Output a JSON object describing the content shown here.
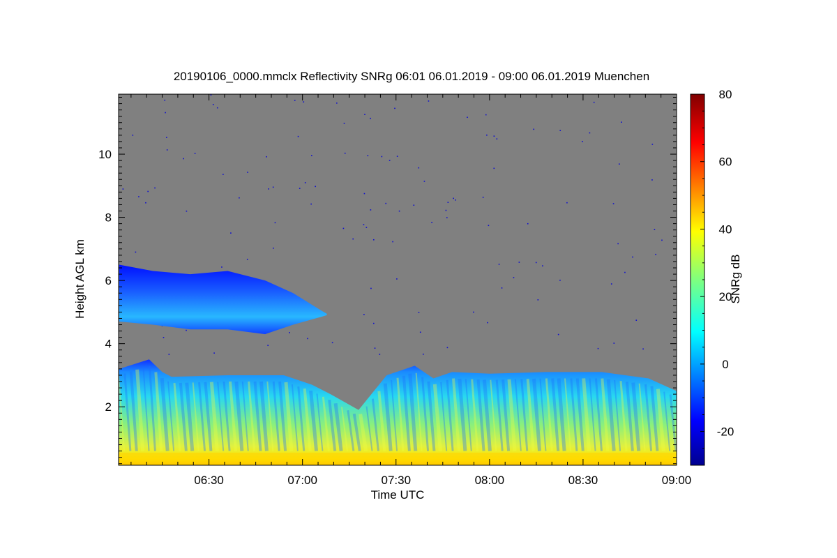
{
  "chart_data": {
    "type": "heatmap",
    "title": "20190106_0000.mmclx Reflectivity SNRg   06:01 06.01.2019 - 09:00 06.01.2019 Muenchen",
    "xlabel": "Time UTC",
    "ylabel": "Height AGL km",
    "x_tick_labels": [
      "06:30",
      "07:00",
      "07:30",
      "08:00",
      "08:30",
      "09:00"
    ],
    "y_tick_labels": [
      "2",
      "4",
      "6",
      "8",
      "10"
    ],
    "xlim": [
      "06:01",
      "09:00"
    ],
    "ylim_km": [
      0.15,
      11.9
    ],
    "background_color": "#808080",
    "colorbar": {
      "label": "SNRg dB",
      "range": [
        -30,
        80
      ],
      "tick_labels": [
        "-20",
        "0",
        "20",
        "40",
        "60",
        "80"
      ],
      "colormap": "jet"
    },
    "cloud_layers": [
      {
        "name": "",
        "time_start": "06:01",
        "time_end": "07:13",
        "base_profile_km": [
          [
            6.02,
            4.7
          ],
          [
            6.2,
            4.6
          ],
          [
            6.4,
            4.45
          ],
          [
            6.6,
            4.45
          ],
          [
            6.8,
            4.3
          ],
          [
            6.95,
            4.6
          ],
          [
            7.1,
            4.85
          ],
          [
            7.13,
            4.9
          ]
        ],
        "top_profile_km": [
          [
            6.02,
            6.5
          ],
          [
            6.2,
            6.3
          ],
          [
            6.4,
            6.2
          ],
          [
            6.6,
            6.3
          ],
          [
            6.8,
            6.0
          ],
          [
            6.95,
            5.6
          ],
          [
            7.1,
            5.05
          ],
          [
            7.13,
            4.95
          ]
        ],
        "snr_typical_db": [
          -20,
          10
        ]
      },
      {
        "name": "",
        "time_start": "06:01",
        "time_end": "09:00",
        "base_km": 0.15,
        "top_profile_km": [
          [
            6.02,
            3.2
          ],
          [
            6.18,
            3.5
          ],
          [
            6.25,
            3.1
          ],
          [
            6.3,
            2.95
          ],
          [
            6.6,
            3.0
          ],
          [
            6.9,
            3.0
          ],
          [
            7.05,
            2.7
          ],
          [
            7.15,
            2.4
          ],
          [
            7.3,
            1.9
          ],
          [
            7.45,
            3.0
          ],
          [
            7.6,
            3.3
          ],
          [
            7.7,
            2.9
          ],
          [
            7.8,
            3.1
          ],
          [
            8.0,
            3.05
          ],
          [
            8.3,
            3.1
          ],
          [
            8.6,
            3.1
          ],
          [
            8.85,
            2.9
          ],
          [
            9.0,
            2.5
          ]
        ],
        "snr_typical_db": [
          -10,
          45
        ]
      }
    ]
  }
}
